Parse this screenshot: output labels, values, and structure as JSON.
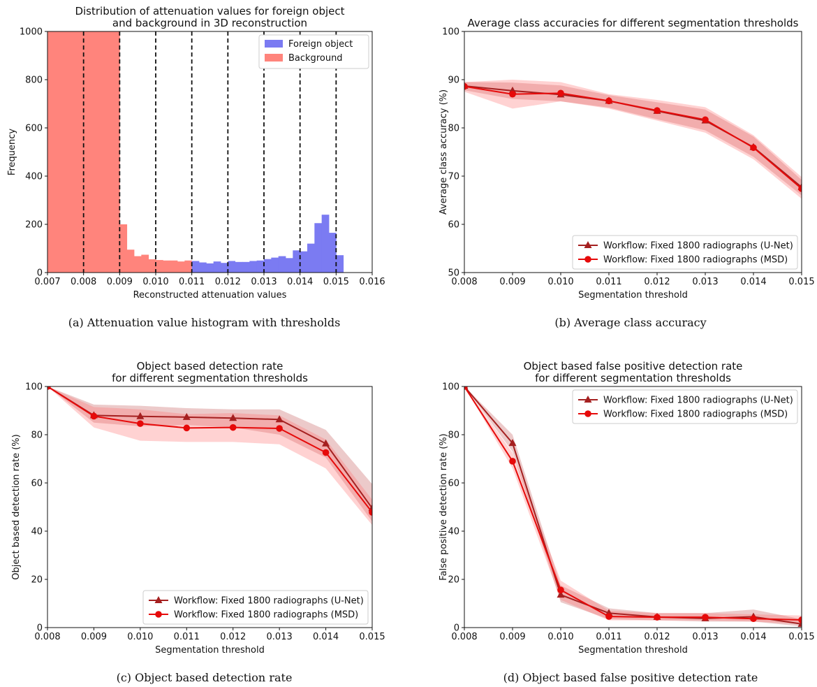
{
  "chart_data": [
    {
      "id": "a",
      "type": "bar",
      "title": "Distribution of attenuation values for foreign object\nand background in 3D reconstruction",
      "xlabel": "Reconstructed attenuation values",
      "ylabel": "Frequency",
      "xlim": [
        0.007,
        0.016
      ],
      "ylim": [
        0,
        1000
      ],
      "xticks": [
        "0.007",
        "0.008",
        "0.009",
        "0.010",
        "0.011",
        "0.012",
        "0.013",
        "0.014",
        "0.015",
        "0.016"
      ],
      "yticks": [
        "0",
        "200",
        "400",
        "600",
        "800",
        "1000"
      ],
      "legend": {
        "placement": "top-right"
      },
      "threshold_lines": [
        0.008,
        0.009,
        0.01,
        0.011,
        0.012,
        0.013,
        0.014,
        0.015
      ],
      "bin_width": 0.0002,
      "series": [
        {
          "name": "Background",
          "color": "#ff847c",
          "bin_starts": [
            0.007,
            0.0072,
            0.0074,
            0.0076,
            0.0078,
            0.008,
            0.0082,
            0.0084,
            0.0086,
            0.0088,
            0.009,
            0.0092,
            0.0094,
            0.0096,
            0.0098,
            0.01,
            0.0102,
            0.0104,
            0.0106,
            0.0108
          ],
          "values": [
            1000,
            1000,
            1000,
            1000,
            1000,
            1000,
            1000,
            1000,
            1000,
            1000,
            200,
            95,
            68,
            74,
            55,
            52,
            50,
            50,
            46,
            50
          ]
        },
        {
          "name": "Foreign object",
          "color": "#7b7bf2",
          "bin_starts": [
            0.011,
            0.0112,
            0.0114,
            0.0116,
            0.0118,
            0.012,
            0.0122,
            0.0124,
            0.0126,
            0.0128,
            0.013,
            0.0132,
            0.0134,
            0.0136,
            0.0138,
            0.014,
            0.0142,
            0.0144,
            0.0146,
            0.0148,
            0.015
          ],
          "values": [
            48,
            42,
            38,
            46,
            40,
            48,
            44,
            44,
            48,
            50,
            56,
            62,
            68,
            60,
            92,
            88,
            120,
            205,
            240,
            165,
            72
          ]
        }
      ]
    },
    {
      "id": "b",
      "type": "line",
      "title": "Average class accuracies for different segmentation thresholds",
      "xlabel": "Segmentation threshold",
      "ylabel": "Average class accuracy (%)",
      "xlim": [
        0.008,
        0.015
      ],
      "ylim": [
        50,
        100
      ],
      "xticks": [
        "0.008",
        "0.009",
        "0.010",
        "0.011",
        "0.012",
        "0.013",
        "0.014",
        "0.015"
      ],
      "yticks": [
        "50",
        "60",
        "70",
        "80",
        "90",
        "100"
      ],
      "legend": {
        "placement": "bottom-right"
      },
      "x": [
        0.008,
        0.009,
        0.01,
        0.011,
        0.012,
        0.013,
        0.014,
        0.015
      ],
      "series": [
        {
          "name": "Workflow: Fixed 1800 radiographs (U-Net)",
          "color": "#a52020",
          "band_color": "#c05050",
          "marker": "triangle",
          "values": [
            88.7,
            87.7,
            86.9,
            85.6,
            83.5,
            81.5,
            76.0,
            67.7
          ],
          "lower": [
            87.8,
            86.0,
            85.5,
            84.2,
            81.8,
            79.5,
            74.0,
            66.0
          ],
          "upper": [
            89.5,
            89.4,
            88.8,
            86.8,
            85.3,
            83.8,
            78.2,
            69.2
          ]
        },
        {
          "name": "Workflow: Fixed 1800 radiographs (MSD)",
          "color": "#e60a0a",
          "band_color": "#ff6a6a",
          "marker": "circle",
          "values": [
            88.6,
            87.0,
            87.2,
            85.6,
            83.6,
            81.7,
            75.9,
            67.4
          ],
          "lower": [
            87.5,
            84.0,
            85.5,
            84.0,
            81.5,
            79.0,
            73.5,
            65.3
          ],
          "upper": [
            89.5,
            90.0,
            89.5,
            87.0,
            85.8,
            84.3,
            78.5,
            69.8
          ]
        }
      ]
    },
    {
      "id": "c",
      "type": "line",
      "title": "Object based detection rate\nfor different segmentation thresholds",
      "xlabel": "Segmentation threshold",
      "ylabel": "Object based detection rate (%)",
      "xlim": [
        0.008,
        0.015
      ],
      "ylim": [
        0,
        100
      ],
      "xticks": [
        "0.008",
        "0.009",
        "0.010",
        "0.011",
        "0.012",
        "0.013",
        "0.014",
        "0.015"
      ],
      "yticks": [
        "0",
        "20",
        "40",
        "60",
        "80",
        "100"
      ],
      "legend": {
        "placement": "bottom-right"
      },
      "x": [
        0.008,
        0.009,
        0.01,
        0.011,
        0.012,
        0.013,
        0.014,
        0.015
      ],
      "series": [
        {
          "name": "Workflow: Fixed 1800 radiographs (U-Net)",
          "color": "#a52020",
          "band_color": "#c05050",
          "marker": "triangle",
          "values": [
            100,
            88,
            87.6,
            87.3,
            86.9,
            86.3,
            76.3,
            49.5
          ],
          "lower": [
            100,
            85.0,
            83.5,
            84.0,
            83.0,
            80.0,
            70.5,
            44.0
          ],
          "upper": [
            100,
            92.5,
            92.0,
            91.0,
            90.5,
            90.5,
            82.0,
            59.5
          ]
        },
        {
          "name": "Workflow: Fixed 1800 radiographs (MSD)",
          "color": "#e60a0a",
          "band_color": "#ff6a6a",
          "marker": "circle",
          "values": [
            100,
            87.7,
            84.6,
            82.8,
            83.0,
            82.6,
            72.6,
            47.8
          ],
          "lower": [
            100,
            83.0,
            77.5,
            77.0,
            77.0,
            76.0,
            66.0,
            42.5
          ],
          "upper": [
            100,
            91.5,
            90.5,
            88.5,
            89.0,
            88.0,
            78.0,
            53.0
          ]
        }
      ]
    },
    {
      "id": "d",
      "type": "line",
      "title": "Object based false positive detection rate\nfor different segmentation thresholds",
      "xlabel": "Segmentation threshold",
      "ylabel": "False positive detection rate (%)",
      "xlim": [
        0.008,
        0.015
      ],
      "ylim": [
        0,
        100
      ],
      "xticks": [
        "0.008",
        "0.009",
        "0.010",
        "0.011",
        "0.012",
        "0.013",
        "0.014",
        "0.015"
      ],
      "yticks": [
        "0",
        "20",
        "40",
        "60",
        "80",
        "100"
      ],
      "legend": {
        "placement": "top-right"
      },
      "x": [
        0.008,
        0.009,
        0.01,
        0.011,
        0.012,
        0.013,
        0.014,
        0.015
      ],
      "series": [
        {
          "name": "Workflow: Fixed 1800 radiographs (U-Net)",
          "color": "#a52020",
          "band_color": "#c05050",
          "marker": "triangle",
          "values": [
            100,
            76.5,
            13.6,
            6.0,
            4.4,
            3.8,
            4.5,
            1.5
          ],
          "lower": [
            100,
            73.0,
            10.5,
            3.5,
            3.0,
            2.5,
            2.5,
            0.5
          ],
          "upper": [
            100,
            80.0,
            17.5,
            8.0,
            6.0,
            6.0,
            7.5,
            3.5
          ]
        },
        {
          "name": "Workflow: Fixed 1800 radiographs (MSD)",
          "color": "#e60a0a",
          "band_color": "#ff6a6a",
          "marker": "circle",
          "values": [
            100,
            69.0,
            15.6,
            4.6,
            4.3,
            4.3,
            3.7,
            3.2
          ],
          "lower": [
            100,
            66.0,
            11.5,
            3.0,
            3.0,
            3.0,
            2.5,
            1.5
          ],
          "upper": [
            100,
            72.5,
            19.5,
            7.0,
            6.0,
            6.0,
            5.5,
            5.0
          ]
        }
      ]
    }
  ],
  "captions": {
    "a": "(a)  Attenuation value histogram with thresholds",
    "b": "(b)  Average class accuracy",
    "c": "(c)  Object based detection rate",
    "d": "(d)  Object based false positive detection rate"
  }
}
